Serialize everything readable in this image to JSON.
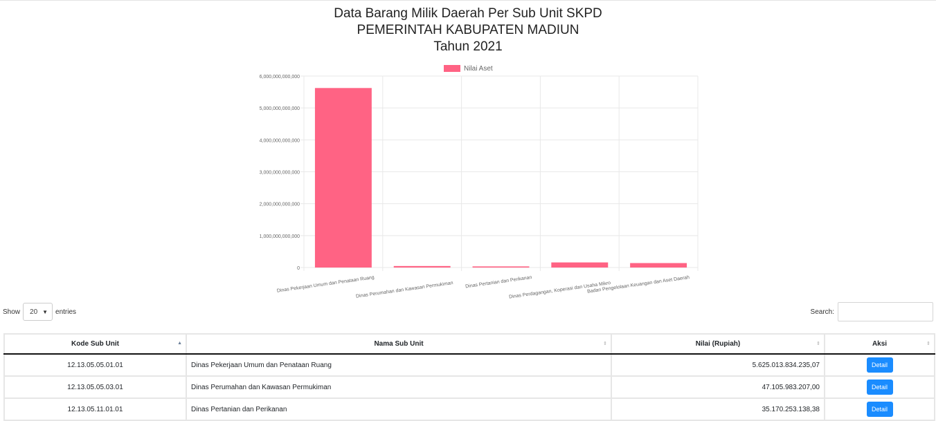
{
  "header": {
    "title_line1": "Data Barang Milik Daerah Per Sub Unit SKPD",
    "title_line2": "PEMERINTAH KABUPATEN MADIUN",
    "title_line3": "Tahun 2021"
  },
  "chart_data": {
    "type": "bar",
    "categories": [
      "Dinas Pekerjaan Umum dan Penataan Ruang",
      "Dinas Perumahan dan Kawasan Permukiman",
      "Dinas Pertanian dan Perikanan",
      "Dinas Perdagangan, Koperasi dan Usaha Mikro",
      "Badan Pengelolaan Keuangan dan Aset Daerah"
    ],
    "series": [
      {
        "name": "Nilai Aset",
        "values": [
          5625013834235.07,
          47105983207.0,
          35170253138.38,
          160000000000,
          140000000000
        ]
      }
    ],
    "ylim": [
      0,
      6000000000000
    ],
    "yticks": [
      "0",
      "1,000,000,000,000",
      "2,000,000,000,000",
      "3,000,000,000,000",
      "4,000,000,000,000",
      "5,000,000,000,000",
      "6,000,000,000,000"
    ],
    "legend_position": "top",
    "grid": true,
    "bar_color": "#ff6384"
  },
  "controls": {
    "show_label": "Show",
    "entries_value": "20",
    "entries_label": "entries",
    "search_label": "Search:"
  },
  "table": {
    "headers": [
      "Kode Sub Unit",
      "Nama Sub Unit",
      "Nilai (Rupiah)",
      "Aksi"
    ],
    "rows": [
      {
        "kode": "12.13.05.05.01.01",
        "nama": "Dinas Pekerjaan Umum dan Penataan Ruang",
        "nilai": "5.625.013.834.235,07",
        "aksi": "Detail"
      },
      {
        "kode": "12.13.05.05.03.01",
        "nama": "Dinas Perumahan dan Kawasan Permukiman",
        "nilai": "47.105.983.207,00",
        "aksi": "Detail"
      },
      {
        "kode": "12.13.05.11.01.01",
        "nama": "Dinas Pertanian dan Perikanan",
        "nilai": "35.170.253.138,38",
        "aksi": "Detail"
      }
    ]
  }
}
